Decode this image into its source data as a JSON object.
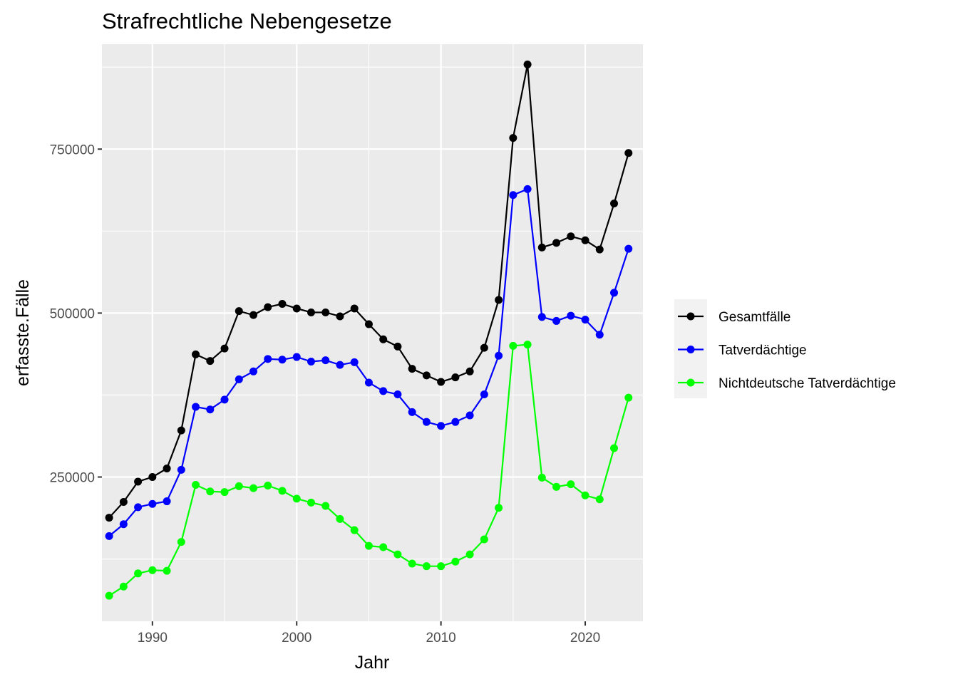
{
  "chart_data": {
    "type": "line",
    "title": "Strafrechtliche Nebengesetze",
    "xlabel": "Jahr",
    "ylabel": "erfasste.Fälle",
    "x": [
      1987,
      1988,
      1989,
      1990,
      1991,
      1992,
      1993,
      1994,
      1995,
      1996,
      1997,
      1998,
      1999,
      2000,
      2001,
      2002,
      2003,
      2004,
      2005,
      2006,
      2007,
      2008,
      2009,
      2010,
      2011,
      2012,
      2013,
      2014,
      2015,
      2016,
      2017,
      2018,
      2019,
      2020,
      2021,
      2022,
      2023
    ],
    "x_ticks": [
      "1990",
      "2000",
      "2010",
      "2020"
    ],
    "y_ticks": [
      "250000",
      "500000",
      "750000"
    ],
    "xlim": [
      1986.5,
      2024.0
    ],
    "ylim": [
      30000,
      910000
    ],
    "grid": true,
    "legend_position": "right",
    "series": [
      {
        "name": "Gesamtfälle",
        "color": "#000000",
        "values": [
          188000,
          212000,
          243000,
          250000,
          263000,
          321000,
          437000,
          427000,
          446000,
          503000,
          497000,
          509000,
          514000,
          507000,
          501000,
          501000,
          495000,
          507000,
          483000,
          460000,
          449000,
          415000,
          405000,
          395000,
          402000,
          411000,
          447000,
          520000,
          767000,
          879000,
          600000,
          607000,
          617000,
          611000,
          597000,
          667000,
          744000
        ]
      },
      {
        "name": "Tatverdächtige",
        "color": "#0000ff",
        "values": [
          160000,
          178000,
          204000,
          209000,
          213000,
          261000,
          357000,
          353000,
          368000,
          399000,
          411000,
          430000,
          429000,
          433000,
          426000,
          428000,
          421000,
          425000,
          394000,
          381000,
          376000,
          349000,
          334000,
          328000,
          334000,
          344000,
          376000,
          435000,
          680000,
          689000,
          494000,
          488000,
          496000,
          490000,
          467000,
          531000,
          598000
        ]
      },
      {
        "name": "Nichtdeutsche Tatverdächtige",
        "color": "#00ff00",
        "values": [
          69000,
          83000,
          103000,
          108000,
          107000,
          151000,
          238000,
          228000,
          227000,
          236000,
          233000,
          237000,
          229000,
          217000,
          211000,
          206000,
          186000,
          169000,
          145000,
          143000,
          132000,
          118000,
          114000,
          114000,
          121000,
          132000,
          155000,
          203000,
          450000,
          452000,
          249000,
          235000,
          239000,
          222000,
          216000,
          294000,
          371000
        ]
      }
    ]
  }
}
